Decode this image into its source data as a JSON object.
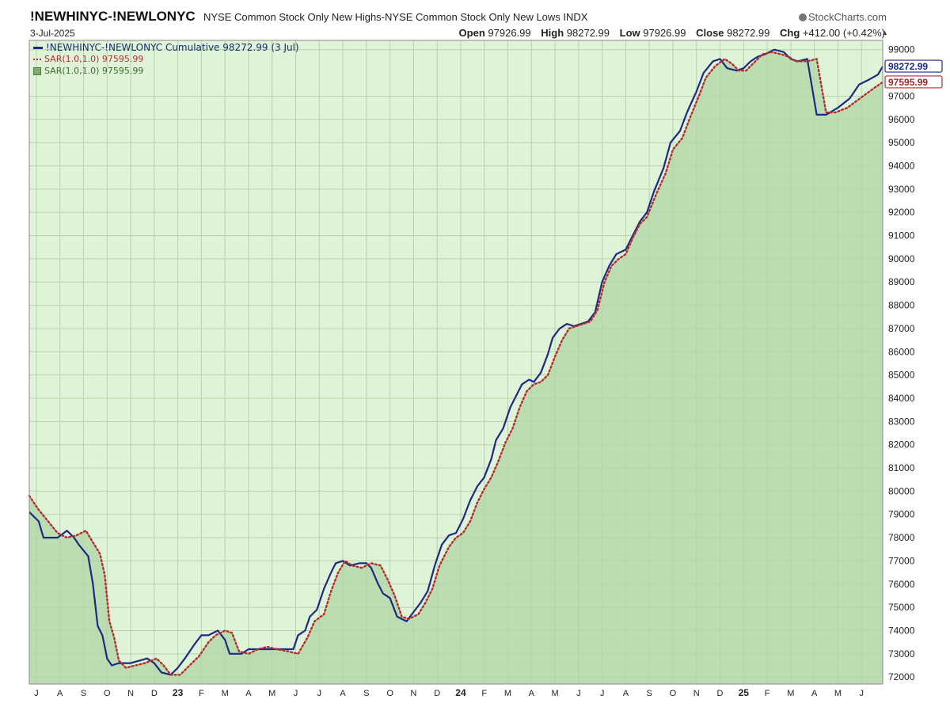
{
  "header": {
    "symbol": "!NEWHINYC-!NEWLONYC",
    "description": "NYSE Common Stock Only New Highs-NYSE Common Stock Only New Lows INDX",
    "logo": "StockCharts.com",
    "date": "3-Jul-2025",
    "ohlc": {
      "open_label": "Open",
      "open": "97926.99",
      "high_label": "High",
      "high": "98272.99",
      "low_label": "Low",
      "low": "97926.99",
      "close_label": "Close",
      "close": "98272.99",
      "chg_label": "Chg",
      "chg": "+412.00 (+0.42%)"
    }
  },
  "legend": {
    "line": "!NEWHINYC-!NEWLONYC Cumulative 98272.99 (3 Jul)",
    "sar": "SAR(1.0,1.0) 97595.99",
    "sar_area": "SAR(1.0,1.0) 97595.99"
  },
  "colors": {
    "background_fill": "#dff3d9",
    "area_fill": "#bcdcb2",
    "grid": "#b5d4a8",
    "line": "#1c2a80",
    "sar": "#b03030"
  },
  "chart_data": {
    "type": "line",
    "ylim": [
      71700,
      99400
    ],
    "y_ticks": [
      72000,
      73000,
      74000,
      75000,
      76000,
      77000,
      78000,
      79000,
      80000,
      81000,
      82000,
      83000,
      84000,
      85000,
      86000,
      87000,
      88000,
      89000,
      90000,
      91000,
      92000,
      93000,
      94000,
      95000,
      96000,
      97000,
      99000
    ],
    "x_tick_labels": [
      "J",
      "A",
      "S",
      "O",
      "N",
      "D",
      "23",
      "F",
      "M",
      "A",
      "M",
      "J",
      "J",
      "A",
      "S",
      "O",
      "N",
      "D",
      "24",
      "F",
      "M",
      "A",
      "M",
      "J",
      "J",
      "A",
      "S",
      "O",
      "N",
      "D",
      "25",
      "F",
      "M",
      "A",
      "M",
      "J"
    ],
    "x_tick_index": [
      0.3,
      1.3,
      2.3,
      3.3,
      4.3,
      5.3,
      6.3,
      7.3,
      8.3,
      9.3,
      10.3,
      11.3,
      12.3,
      13.3,
      14.3,
      15.3,
      16.3,
      17.3,
      18.3,
      19.3,
      20.3,
      21.3,
      22.3,
      23.3,
      24.3,
      25.3,
      26.3,
      27.3,
      28.3,
      29.3,
      30.3,
      31.3,
      32.3,
      33.3,
      34.3,
      35.3
    ],
    "year_labels": [
      "23",
      "24",
      "25"
    ],
    "x_max": 36.2,
    "series": [
      {
        "name": "!NEWHINYC-!NEWLONYC Cumulative",
        "style": "solid",
        "points": [
          [
            0,
            79100
          ],
          [
            0.4,
            78700
          ],
          [
            0.6,
            78000
          ],
          [
            1.2,
            78000
          ],
          [
            1.6,
            78300
          ],
          [
            1.9,
            78000
          ],
          [
            2.1,
            77700
          ],
          [
            2.5,
            77200
          ],
          [
            2.7,
            76000
          ],
          [
            2.9,
            74200
          ],
          [
            3.1,
            73800
          ],
          [
            3.3,
            72800
          ],
          [
            3.5,
            72500
          ],
          [
            3.8,
            72600
          ],
          [
            4.3,
            72600
          ],
          [
            5.0,
            72800
          ],
          [
            5.3,
            72600
          ],
          [
            5.6,
            72200
          ],
          [
            6.0,
            72100
          ],
          [
            6.3,
            72400
          ],
          [
            6.6,
            72800
          ],
          [
            7.0,
            73400
          ],
          [
            7.3,
            73800
          ],
          [
            7.6,
            73800
          ],
          [
            8.0,
            74000
          ],
          [
            8.3,
            73600
          ],
          [
            8.5,
            73000
          ],
          [
            9.0,
            73000
          ],
          [
            9.3,
            73200
          ],
          [
            9.7,
            73200
          ],
          [
            10.3,
            73200
          ],
          [
            10.7,
            73200
          ],
          [
            11.2,
            73200
          ],
          [
            11.4,
            73800
          ],
          [
            11.7,
            74000
          ],
          [
            11.9,
            74600
          ],
          [
            12.2,
            74900
          ],
          [
            12.5,
            75800
          ],
          [
            12.8,
            76500
          ],
          [
            13.0,
            76900
          ],
          [
            13.3,
            77000
          ],
          [
            13.6,
            76800
          ],
          [
            14.0,
            76900
          ],
          [
            14.3,
            76900
          ],
          [
            14.5,
            76700
          ],
          [
            14.8,
            76000
          ],
          [
            15.0,
            75600
          ],
          [
            15.3,
            75400
          ],
          [
            15.6,
            74600
          ],
          [
            16.0,
            74400
          ],
          [
            16.3,
            74800
          ],
          [
            16.6,
            75200
          ],
          [
            16.9,
            75700
          ],
          [
            17.2,
            76800
          ],
          [
            17.5,
            77700
          ],
          [
            17.8,
            78100
          ],
          [
            18.1,
            78200
          ],
          [
            18.4,
            78800
          ],
          [
            18.7,
            79600
          ],
          [
            19.0,
            80200
          ],
          [
            19.3,
            80600
          ],
          [
            19.6,
            81400
          ],
          [
            19.8,
            82200
          ],
          [
            20.1,
            82700
          ],
          [
            20.4,
            83600
          ],
          [
            20.7,
            84200
          ],
          [
            20.9,
            84600
          ],
          [
            21.2,
            84800
          ],
          [
            21.4,
            84700
          ],
          [
            21.7,
            85100
          ],
          [
            22.0,
            85900
          ],
          [
            22.2,
            86600
          ],
          [
            22.5,
            87000
          ],
          [
            22.8,
            87200
          ],
          [
            23.1,
            87100
          ],
          [
            23.4,
            87200
          ],
          [
            23.7,
            87300
          ],
          [
            24.0,
            87700
          ],
          [
            24.3,
            89000
          ],
          [
            24.6,
            89700
          ],
          [
            24.9,
            90200
          ],
          [
            25.3,
            90400
          ],
          [
            25.6,
            91000
          ],
          [
            25.9,
            91600
          ],
          [
            26.2,
            92000
          ],
          [
            26.5,
            92900
          ],
          [
            26.9,
            93900
          ],
          [
            27.2,
            95000
          ],
          [
            27.6,
            95500
          ],
          [
            27.9,
            96300
          ],
          [
            28.3,
            97200
          ],
          [
            28.6,
            98000
          ],
          [
            29.0,
            98500
          ],
          [
            29.3,
            98600
          ],
          [
            29.6,
            98200
          ],
          [
            30.0,
            98100
          ],
          [
            30.3,
            98200
          ],
          [
            30.6,
            98500
          ],
          [
            30.9,
            98700
          ],
          [
            31.2,
            98800
          ],
          [
            31.6,
            99000
          ],
          [
            32.0,
            98900
          ],
          [
            32.3,
            98600
          ],
          [
            32.6,
            98500
          ],
          [
            33.0,
            98600
          ],
          [
            33.4,
            96200
          ],
          [
            33.8,
            96200
          ],
          [
            34.3,
            96500
          ],
          [
            34.8,
            96900
          ],
          [
            35.2,
            97500
          ],
          [
            35.6,
            97700
          ],
          [
            36.0,
            97926.99
          ],
          [
            36.2,
            98272.99
          ]
        ]
      },
      {
        "name": "SAR(1.0,1.0)",
        "style": "dotted",
        "points": [
          [
            0,
            79800
          ],
          [
            0.4,
            79200
          ],
          [
            0.8,
            78700
          ],
          [
            1.2,
            78200
          ],
          [
            1.6,
            78000
          ],
          [
            2.0,
            78100
          ],
          [
            2.4,
            78300
          ],
          [
            2.7,
            77800
          ],
          [
            3.0,
            77300
          ],
          [
            3.2,
            76400
          ],
          [
            3.4,
            74400
          ],
          [
            3.6,
            73700
          ],
          [
            3.8,
            72700
          ],
          [
            4.1,
            72400
          ],
          [
            4.5,
            72500
          ],
          [
            4.9,
            72600
          ],
          [
            5.4,
            72800
          ],
          [
            5.7,
            72500
          ],
          [
            6.0,
            72100
          ],
          [
            6.4,
            72100
          ],
          [
            6.8,
            72500
          ],
          [
            7.2,
            72900
          ],
          [
            7.6,
            73500
          ],
          [
            7.9,
            73800
          ],
          [
            8.3,
            74000
          ],
          [
            8.6,
            73900
          ],
          [
            8.9,
            73100
          ],
          [
            9.3,
            73000
          ],
          [
            9.7,
            73200
          ],
          [
            10.1,
            73300
          ],
          [
            10.5,
            73200
          ],
          [
            11.0,
            73100
          ],
          [
            11.4,
            73000
          ],
          [
            11.8,
            73700
          ],
          [
            12.1,
            74400
          ],
          [
            12.5,
            74700
          ],
          [
            12.8,
            75700
          ],
          [
            13.1,
            76500
          ],
          [
            13.4,
            77000
          ],
          [
            13.7,
            76800
          ],
          [
            14.1,
            76700
          ],
          [
            14.5,
            76900
          ],
          [
            14.9,
            76800
          ],
          [
            15.2,
            76200
          ],
          [
            15.5,
            75500
          ],
          [
            15.8,
            74600
          ],
          [
            16.1,
            74500
          ],
          [
            16.5,
            74700
          ],
          [
            16.8,
            75200
          ],
          [
            17.1,
            75800
          ],
          [
            17.4,
            76800
          ],
          [
            17.8,
            77600
          ],
          [
            18.1,
            78000
          ],
          [
            18.4,
            78200
          ],
          [
            18.7,
            78700
          ],
          [
            19.0,
            79500
          ],
          [
            19.3,
            80100
          ],
          [
            19.6,
            80600
          ],
          [
            19.9,
            81300
          ],
          [
            20.2,
            82100
          ],
          [
            20.5,
            82700
          ],
          [
            20.8,
            83600
          ],
          [
            21.1,
            84300
          ],
          [
            21.4,
            84600
          ],
          [
            21.7,
            84700
          ],
          [
            22.0,
            85000
          ],
          [
            22.3,
            85800
          ],
          [
            22.6,
            86500
          ],
          [
            22.9,
            87000
          ],
          [
            23.2,
            87100
          ],
          [
            23.5,
            87200
          ],
          [
            23.8,
            87300
          ],
          [
            24.1,
            87800
          ],
          [
            24.4,
            89000
          ],
          [
            24.7,
            89700
          ],
          [
            25.0,
            90000
          ],
          [
            25.3,
            90200
          ],
          [
            25.6,
            90900
          ],
          [
            25.9,
            91500
          ],
          [
            26.2,
            91800
          ],
          [
            26.6,
            92800
          ],
          [
            27.0,
            93700
          ],
          [
            27.3,
            94700
          ],
          [
            27.7,
            95200
          ],
          [
            28.0,
            96000
          ],
          [
            28.4,
            97000
          ],
          [
            28.7,
            97800
          ],
          [
            29.1,
            98300
          ],
          [
            29.5,
            98600
          ],
          [
            29.8,
            98400
          ],
          [
            30.1,
            98100
          ],
          [
            30.4,
            98100
          ],
          [
            30.8,
            98500
          ],
          [
            31.1,
            98800
          ],
          [
            31.5,
            98900
          ],
          [
            31.9,
            98800
          ],
          [
            32.2,
            98700
          ],
          [
            32.5,
            98500
          ],
          [
            33.0,
            98500
          ],
          [
            33.4,
            98600
          ],
          [
            33.8,
            96300
          ],
          [
            34.2,
            96300
          ],
          [
            34.7,
            96500
          ],
          [
            35.1,
            96800
          ],
          [
            35.5,
            97100
          ],
          [
            35.9,
            97400
          ],
          [
            36.2,
            97595.99
          ]
        ]
      }
    ],
    "last_value_labels": [
      "98272.99",
      "97595.99"
    ],
    "grid": true,
    "legend_position": "top-left"
  }
}
